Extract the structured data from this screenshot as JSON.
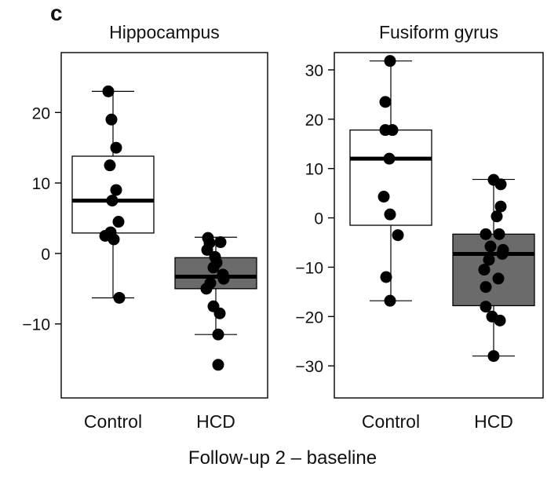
{
  "panel_label": "c",
  "xlabel": "Follow-up 2 – baseline",
  "colors": {
    "control_box": "#ffffff",
    "hcd_box": "#6b6b6b",
    "points": "#000000",
    "frame": "#000000"
  },
  "chart_data": [
    {
      "type": "box",
      "title": "Hippocampus",
      "categories": [
        "Control",
        "HCD"
      ],
      "ylim": [
        -20.5,
        28.5
      ],
      "yticks": [
        -10,
        0,
        10,
        20
      ],
      "ytick_labels": [
        "-10",
        "0",
        "10",
        "20"
      ],
      "boxes": [
        {
          "name": "Control",
          "whisker_low": -6.3,
          "q1": 2.9,
          "median": 7.5,
          "q3": 13.8,
          "whisker_high": 23.0
        },
        {
          "name": "HCD",
          "whisker_low": -11.5,
          "q1": -5.0,
          "median": -3.3,
          "q3": -0.6,
          "whisker_high": 2.3
        }
      ],
      "points": [
        {
          "group": "Control",
          "values": [
            23.0,
            19.0,
            15.0,
            12.5,
            9.0,
            7.5,
            4.5,
            3.0,
            2.0,
            2.5,
            -6.3
          ]
        },
        {
          "group": "HCD",
          "values": [
            2.2,
            1.5,
            1.6,
            0.5,
            -0.5,
            -1.3,
            -2.0,
            -3.0,
            -3.6,
            -4.2,
            -5.0,
            -7.5,
            -8.5,
            -11.5,
            -15.8
          ]
        }
      ]
    },
    {
      "type": "box",
      "title": "Fusiform gyrus",
      "categories": [
        "Control",
        "HCD"
      ],
      "ylim": [
        -36.5,
        33.5
      ],
      "yticks": [
        -30,
        -20,
        -10,
        0,
        10,
        20,
        30
      ],
      "ytick_labels": [
        "-30",
        "-20",
        "-10",
        "0",
        "10",
        "20",
        "30"
      ],
      "boxes": [
        {
          "name": "Control",
          "whisker_low": -16.8,
          "q1": -1.5,
          "median": 12.0,
          "q3": 17.8,
          "whisker_high": 31.8
        },
        {
          "name": "HCD",
          "whisker_low": -28.0,
          "q1": -17.8,
          "median": -7.3,
          "q3": -3.3,
          "whisker_high": 7.8
        }
      ],
      "points": [
        {
          "group": "Control",
          "values": [
            31.8,
            23.5,
            17.8,
            17.8,
            12.0,
            4.3,
            0.7,
            -3.5,
            -12.0,
            -16.8
          ]
        },
        {
          "group": "HCD",
          "values": [
            7.7,
            6.8,
            2.3,
            0.3,
            -3.3,
            -3.3,
            -5.8,
            -6.5,
            -7.3,
            -8.5,
            -10.5,
            -12.3,
            -14.0,
            -18.0,
            -20.0,
            -20.8,
            -28.0
          ]
        }
      ]
    }
  ]
}
